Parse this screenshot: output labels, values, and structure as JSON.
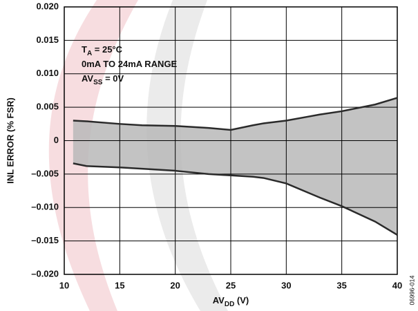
{
  "chart_data": {
    "type": "line",
    "x_label": {
      "text": "AV",
      "sub": "DD",
      "rest": " (V)"
    },
    "y_label": "INL ERROR (% FSR)",
    "side_note": "06996-014",
    "annotations": [
      {
        "text": "T",
        "sub": "A",
        "rest": " = 25°C"
      },
      {
        "text": "0mA TO 24mA RANGE"
      },
      {
        "text": "AV",
        "sub": "SS",
        "rest": " = 0V"
      }
    ],
    "x": [
      10.8,
      12,
      15,
      17,
      20,
      23,
      25,
      27,
      28,
      30,
      32,
      33,
      35,
      38,
      40
    ],
    "series": [
      {
        "color": "#2a2a2a",
        "values": [
          0.003,
          0.0029,
          0.0025,
          0.0023,
          0.0022,
          0.0019,
          0.0016,
          0.0023,
          0.0026,
          0.003,
          0.0036,
          0.0039,
          0.0044,
          0.0054,
          0.0064
        ]
      },
      {
        "color": "#2a2a2a",
        "values": [
          -0.0034,
          -0.0038,
          -0.004,
          -0.0042,
          -0.0045,
          -0.005,
          -0.0052,
          -0.0054,
          -0.0056,
          -0.0064,
          -0.0078,
          -0.0085,
          -0.0098,
          -0.0121,
          -0.0141
        ]
      }
    ],
    "band_color": "#b9b9b9",
    "xlim": [
      10,
      40
    ],
    "xticks": [
      10,
      15,
      20,
      25,
      30,
      35,
      40
    ],
    "ylim": [
      -0.02,
      0.02
    ],
    "yticks": [
      {
        "value": -0.02,
        "label": "–0.020"
      },
      {
        "value": -0.015,
        "label": "–0.015"
      },
      {
        "value": -0.01,
        "label": "–0.010"
      },
      {
        "value": -0.005,
        "label": "–0.005"
      },
      0,
      0.005,
      {
        "value": 0.01,
        "label": "0.010"
      },
      0.015,
      {
        "value": 0.02,
        "label": "0.020"
      }
    ],
    "grid": true
  }
}
